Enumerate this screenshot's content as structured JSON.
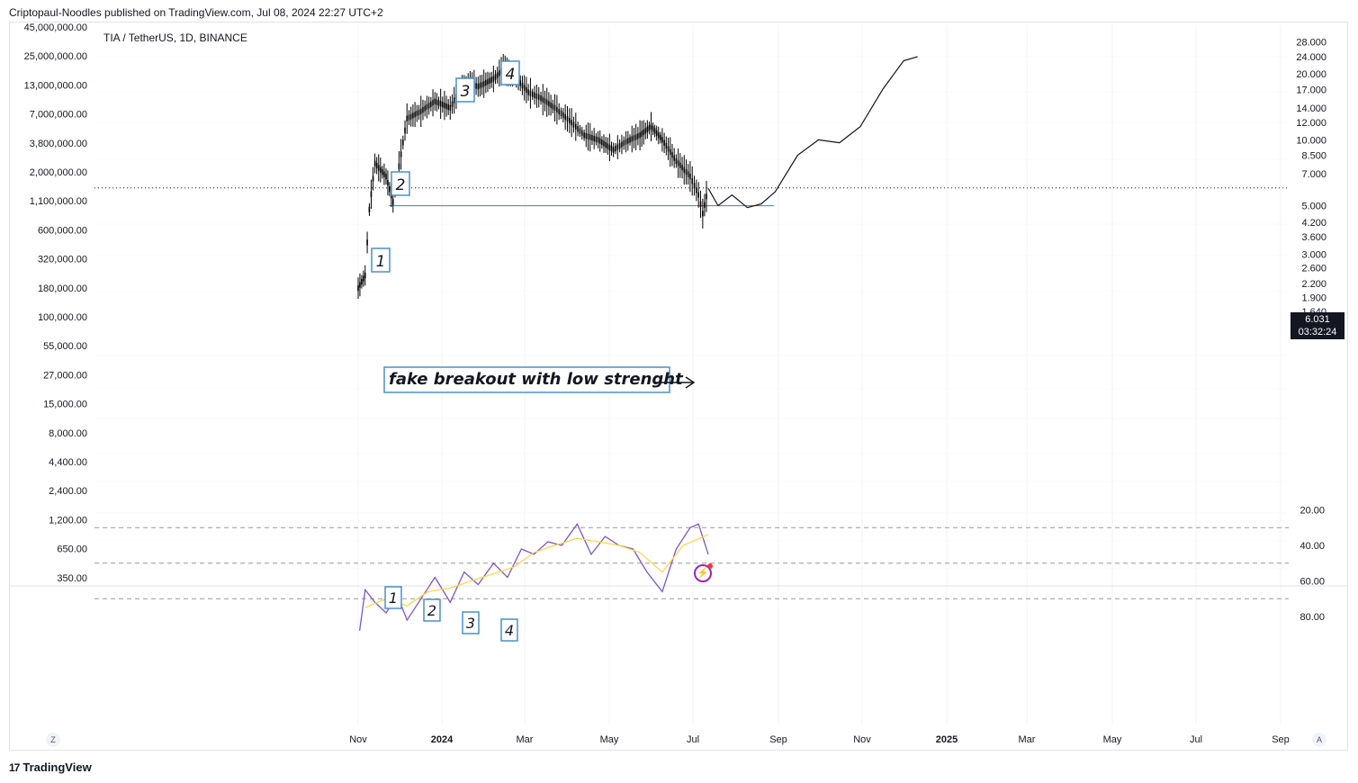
{
  "header": {
    "publisher": "Criptopaul-Noodles published on TradingView.com, Jul 08, 2024 22:27 UTC+2",
    "symbol": "TIA / TetherUS, 1D, BINANCE"
  },
  "price_label": {
    "value": "6.031",
    "countdown": "03:32:24"
  },
  "footer": {
    "brand": "TradingView",
    "logo_glyph": "17"
  },
  "buttons": {
    "z": "Z",
    "a": "A"
  },
  "colors": {
    "candles": "#000000",
    "rsi_line": "#7e57c2",
    "rsi_ma": "#ffd54f",
    "rsi_band": "#ede7f6",
    "annotation_box": "#4a90c8",
    "horizontal_line": "#4a90c8"
  },
  "chart_data": [
    {
      "type": "line",
      "title": "",
      "scale": "log",
      "left_axis": {
        "ticks": [
          "45,000,000.00",
          "25,000,000.00",
          "13,000,000.00",
          "7,000,000.00",
          "3,800,000.00",
          "2,000,000.00",
          "1,100,000.00",
          "600,000.00",
          "320,000.00",
          "180,000.00",
          "100,000.00",
          "55,000.00",
          "27,000.00",
          "15,000.00",
          "8,000.00",
          "4,400.00",
          "2,400.00",
          "1,200.00",
          "650.00",
          "350.00"
        ]
      },
      "right_axis": {
        "ticks": [
          "28.000",
          "24.000",
          "20.000",
          "17.000",
          "14.000",
          "12.000",
          "10.000",
          "8.500",
          "7.000",
          "5.000",
          "4.200",
          "3.600",
          "3.000",
          "2.600",
          "2.200",
          "1.900",
          "1.640"
        ]
      },
      "x_ticks": [
        "Nov",
        "2024",
        "Mar",
        "May",
        "Jul",
        "Sep",
        "Nov",
        "2025",
        "Mar",
        "May",
        "Jul",
        "Sep"
      ],
      "last_price": 6.031,
      "support_level": 5.0,
      "wave_labels": [
        "1",
        "2",
        "3",
        "4"
      ],
      "annotation": "fake breakout with low strenght",
      "price_series": {
        "x": [
          "2023-10-31",
          "2023-11-05",
          "2023-11-08",
          "2023-11-12",
          "2023-11-20",
          "2023-11-25",
          "2023-12-05",
          "2023-12-15",
          "2023-12-25",
          "2024-01-05",
          "2024-01-15",
          "2024-01-25",
          "2024-02-05",
          "2024-02-12",
          "2024-02-20",
          "2024-03-01",
          "2024-03-10",
          "2024-03-20",
          "2024-04-01",
          "2024-04-10",
          "2024-04-20",
          "2024-05-01",
          "2024-05-10",
          "2024-05-20",
          "2024-05-28",
          "2024-06-05",
          "2024-06-15",
          "2024-06-25",
          "2024-07-01",
          "2024-07-04",
          "2024-07-08"
        ],
        "y": [
          2.1,
          2.4,
          4.8,
          7.8,
          6.8,
          5.2,
          12.5,
          13.5,
          15.0,
          14.0,
          18.5,
          17.5,
          19.0,
          21.0,
          19.5,
          16.5,
          15.5,
          14.0,
          12.0,
          10.5,
          10.0,
          9.0,
          9.8,
          10.5,
          11.5,
          10.0,
          8.0,
          6.8,
          5.6,
          4.6,
          6.03
        ]
      },
      "projection": {
        "x": [
          "2024-07-08",
          "2024-07-15",
          "2024-07-25",
          "2024-08-05",
          "2024-08-15",
          "2024-08-25",
          "2024-09-10",
          "2024-09-25",
          "2024-10-10",
          "2024-10-25",
          "2024-11-10",
          "2024-11-25",
          "2024-12-05"
        ],
        "y": [
          6.0,
          5.0,
          5.6,
          4.9,
          5.1,
          5.8,
          8.5,
          10.0,
          9.7,
          11.5,
          17.0,
          23.0,
          24.0
        ]
      }
    },
    {
      "type": "line",
      "title": "",
      "y_ticks": [
        "80.00",
        "60.00",
        "40.00",
        "20.00"
      ],
      "band": [
        30,
        70
      ],
      "midline": 50,
      "wave_labels": [
        "1",
        "2",
        "3",
        "4"
      ],
      "rsi": {
        "x": [
          "2023-11-01",
          "2023-11-05",
          "2023-11-12",
          "2023-11-20",
          "2023-11-28",
          "2023-12-05",
          "2023-12-15",
          "2023-12-25",
          "2024-01-05",
          "2024-01-15",
          "2024-01-25",
          "2024-02-05",
          "2024-02-15",
          "2024-02-25",
          "2024-03-05",
          "2024-03-15",
          "2024-03-25",
          "2024-04-05",
          "2024-04-15",
          "2024-04-25",
          "2024-05-05",
          "2024-05-15",
          "2024-05-25",
          "2024-06-05",
          "2024-06-15",
          "2024-06-25",
          "2024-07-01",
          "2024-07-08"
        ],
        "y": [
          88,
          65,
          72,
          78,
          68,
          82,
          70,
          58,
          72,
          55,
          62,
          50,
          58,
          42,
          45,
          38,
          40,
          28,
          45,
          35,
          40,
          42,
          55,
          66,
          42,
          30,
          28,
          45
        ]
      },
      "rsi_ma": {
        "x": [
          "2023-11-05",
          "2023-11-20",
          "2023-12-05",
          "2023-12-20",
          "2024-01-05",
          "2024-01-20",
          "2024-02-05",
          "2024-02-20",
          "2024-03-05",
          "2024-03-20",
          "2024-04-05",
          "2024-04-20",
          "2024-05-05",
          "2024-05-20",
          "2024-06-05",
          "2024-06-20",
          "2024-07-08"
        ],
        "y": [
          75,
          70,
          74,
          66,
          64,
          60,
          56,
          52,
          44,
          40,
          36,
          38,
          40,
          44,
          55,
          40,
          34
        ]
      }
    }
  ]
}
